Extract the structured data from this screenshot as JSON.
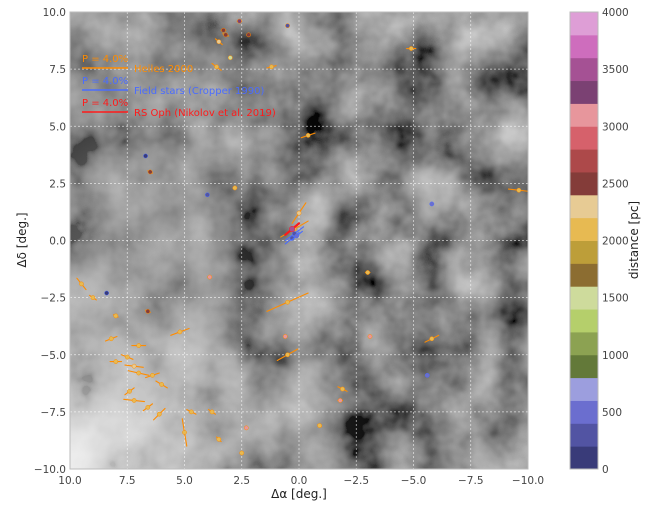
{
  "chart_data": {
    "type": "scatter",
    "xlabel": "Δα [deg.]",
    "ylabel": "Δδ [deg.]",
    "xlim": [
      10.0,
      -10.0
    ],
    "ylim": [
      -10.0,
      10.0
    ],
    "x_ticks": [
      10.0,
      7.5,
      5.0,
      2.5,
      0.0,
      -2.5,
      -5.0,
      -7.5,
      -10.0
    ],
    "x_tick_labels": [
      "10.0",
      "7.5",
      "5.0",
      "2.5",
      "0.0",
      "−2.5",
      "−5.0",
      "−7.5",
      "−10.0"
    ],
    "y_ticks": [
      10.0,
      7.5,
      5.0,
      2.5,
      0.0,
      -2.5,
      -5.0,
      -7.5,
      -10.0
    ],
    "y_tick_labels": [
      "10.0",
      "7.5",
      "5.0",
      "2.5",
      "0.0",
      "−2.5",
      "−5.0",
      "−7.5",
      "−10.0"
    ],
    "grid": true,
    "background": "grayscale dust map",
    "legend": {
      "placement": "top-left",
      "entries": [
        {
          "label": "Heiles 2000",
          "scale_label": "P = 4.0%",
          "color": "#ff8c00"
        },
        {
          "label": "Field stars (Cropper 1990)",
          "scale_label": "P = 4.0%",
          "color": "#4a6cff"
        },
        {
          "label": "RS Oph (Nikolov et al. 2019)",
          "scale_label": "P = 4.0%",
          "color": "#ff1a1a"
        }
      ]
    },
    "colorbar": {
      "label": "distance [pc]",
      "range": [
        0,
        4000
      ],
      "ticks": [
        0,
        500,
        1000,
        1500,
        2000,
        2500,
        3000,
        3500,
        4000
      ],
      "colors": [
        "#393b79",
        "#5254a3",
        "#6b6ecf",
        "#9c9ede",
        "#637939",
        "#8ca252",
        "#b5cf6b",
        "#cedb9c",
        "#8c6d31",
        "#bd9e39",
        "#e7ba52",
        "#e7cb94",
        "#843c39",
        "#ad494a",
        "#d6616b",
        "#e7969c",
        "#7b4173",
        "#a55194",
        "#ce6dbd",
        "#de9ed6"
      ]
    },
    "series": [
      {
        "name": "Heiles 2000",
        "color": "#ff8c00",
        "points": [
          {
            "x": 2.6,
            "y": 9.6,
            "d": 3200,
            "dx": 0.2,
            "dy": 0.0
          },
          {
            "x": 0.5,
            "y": 9.4,
            "d": 200,
            "dx": 0.1,
            "dy": 0.0
          },
          {
            "x": 3.2,
            "y": 9.0,
            "d": 2400,
            "dx": 0.25,
            "dy": 0.1
          },
          {
            "x": 3.3,
            "y": 9.2,
            "d": 2500,
            "dx": 0.2,
            "dy": 0.0
          },
          {
            "x": 2.2,
            "y": 9.0,
            "d": 2500,
            "dx": 0.15,
            "dy": 0.0
          },
          {
            "x": 3.5,
            "y": 8.7,
            "d": 2200,
            "dx": 0.3,
            "dy": 0.25
          },
          {
            "x": 3.0,
            "y": 8.0,
            "d": 1500,
            "dx": 0.05,
            "dy": 0.0
          },
          {
            "x": -4.9,
            "y": 8.4,
            "d": 2100,
            "dx": 0.4,
            "dy": 0.0
          },
          {
            "x": 3.6,
            "y": 7.6,
            "d": 2000,
            "dx": 0.4,
            "dy": 0.3
          },
          {
            "x": 1.2,
            "y": 7.6,
            "d": 2000,
            "dx": 0.4,
            "dy": -0.1
          },
          {
            "x": -0.4,
            "y": 4.6,
            "d": 2000,
            "dx": 0.6,
            "dy": -0.2
          },
          {
            "x": 6.5,
            "y": 3.0,
            "d": 2500,
            "dx": 0.2,
            "dy": 0.1
          },
          {
            "x": 2.8,
            "y": 2.3,
            "d": 2100,
            "dx": 0.15,
            "dy": -0.05
          },
          {
            "x": -9.6,
            "y": 2.2,
            "d": 2100,
            "dx": 0.9,
            "dy": 0.1
          },
          {
            "x": 0.0,
            "y": 1.2,
            "d": 2200,
            "dx": 0.6,
            "dy": -0.9
          },
          {
            "x": 0.2,
            "y": 0.5,
            "d": 2000,
            "dx": 1.2,
            "dy": -0.7
          },
          {
            "x": -3.0,
            "y": -1.4,
            "d": 2000,
            "dx": 0.2,
            "dy": 0.0
          },
          {
            "x": 0.5,
            "y": -2.7,
            "d": 2100,
            "dx": 1.8,
            "dy": -0.8
          },
          {
            "x": 9.5,
            "y": -1.9,
            "d": 2000,
            "dx": 0.4,
            "dy": 0.5
          },
          {
            "x": 9.0,
            "y": -2.5,
            "d": 2000,
            "dx": 0.3,
            "dy": 0.2
          },
          {
            "x": 8.0,
            "y": -3.3,
            "d": 2000,
            "dx": 0.2,
            "dy": 0.1
          },
          {
            "x": 6.6,
            "y": -3.1,
            "d": 2500,
            "dx": 0.2,
            "dy": 0.1
          },
          {
            "x": 5.2,
            "y": -4.0,
            "d": 2000,
            "dx": 0.8,
            "dy": -0.3
          },
          {
            "x": 8.2,
            "y": -4.3,
            "d": 2000,
            "dx": 0.5,
            "dy": -0.2
          },
          {
            "x": -5.8,
            "y": -4.3,
            "d": 2100,
            "dx": 0.6,
            "dy": -0.3
          },
          {
            "x": 0.5,
            "y": -5.0,
            "d": 2000,
            "dx": 0.9,
            "dy": -0.5
          },
          {
            "x": 7.0,
            "y": -4.6,
            "d": 2000,
            "dx": 0.6,
            "dy": 0.0
          },
          {
            "x": 7.5,
            "y": -5.1,
            "d": 2000,
            "dx": 0.5,
            "dy": 0.2
          },
          {
            "x": 8.0,
            "y": -5.3,
            "d": 2100,
            "dx": 0.5,
            "dy": 0.0
          },
          {
            "x": 7.2,
            "y": -5.5,
            "d": 2200,
            "dx": 0.8,
            "dy": 0.1
          },
          {
            "x": 7.0,
            "y": -5.8,
            "d": 2000,
            "dx": 0.9,
            "dy": 0.2
          },
          {
            "x": 6.4,
            "y": -5.9,
            "d": 2000,
            "dx": 0.6,
            "dy": -0.2
          },
          {
            "x": 6.0,
            "y": -6.3,
            "d": 2000,
            "dx": 0.5,
            "dy": 0.3
          },
          {
            "x": 7.4,
            "y": -6.6,
            "d": 2000,
            "dx": 0.4,
            "dy": -0.3
          },
          {
            "x": 7.2,
            "y": -7.0,
            "d": 2100,
            "dx": 0.9,
            "dy": 0.1
          },
          {
            "x": 6.6,
            "y": -7.3,
            "d": 2000,
            "dx": 0.4,
            "dy": -0.3
          },
          {
            "x": 6.1,
            "y": -7.6,
            "d": 2000,
            "dx": 0.5,
            "dy": -0.5
          },
          {
            "x": 4.7,
            "y": -7.5,
            "d": 2000,
            "dx": 0.4,
            "dy": 0.2
          },
          {
            "x": 5.0,
            "y": -8.4,
            "d": 2000,
            "dx": 0.2,
            "dy": 1.2
          },
          {
            "x": 3.8,
            "y": -7.5,
            "d": 2100,
            "dx": 0.3,
            "dy": 0.2
          },
          {
            "x": 3.5,
            "y": -8.7,
            "d": 2000,
            "dx": 0.2,
            "dy": 0.2
          },
          {
            "x": 2.5,
            "y": -9.3,
            "d": 2000,
            "dx": 0.05,
            "dy": 0.0
          },
          {
            "x": 2.3,
            "y": -8.2,
            "d": 3000,
            "dx": 0.1,
            "dy": 0.1
          },
          {
            "x": -1.8,
            "y": -7.0,
            "d": 3000,
            "dx": 0.2,
            "dy": 0.0
          },
          {
            "x": -1.9,
            "y": -6.5,
            "d": 2000,
            "dx": 0.4,
            "dy": 0.2
          },
          {
            "x": -0.9,
            "y": -8.1,
            "d": 2000,
            "dx": 0.15,
            "dy": 0.1
          },
          {
            "x": 3.9,
            "y": -1.6,
            "d": 3000,
            "dx": 0.15,
            "dy": 0.0
          },
          {
            "x": -3.1,
            "y": -4.2,
            "d": 3000,
            "dx": 0.05,
            "dy": 0.0
          },
          {
            "x": 0.6,
            "y": -4.2,
            "d": 3000,
            "dx": 0.05,
            "dy": 0.0
          }
        ]
      },
      {
        "name": "Field stars (Cropper 1990)",
        "color": "#4a6cff",
        "points": [
          {
            "x": 0.2,
            "y": 0.3,
            "d": 300,
            "dx": 0.8,
            "dy": -0.6
          },
          {
            "x": 0.3,
            "y": 0.1,
            "d": 300,
            "dx": 0.6,
            "dy": -0.5
          },
          {
            "x": 0.1,
            "y": 0.2,
            "d": 400,
            "dx": 0.5,
            "dy": -0.4
          },
          {
            "x": 4.0,
            "y": 2.0,
            "d": 200,
            "dx": 0.05,
            "dy": 0.0
          },
          {
            "x": 6.7,
            "y": 3.7,
            "d": 150,
            "dx": 0.05,
            "dy": 0.0
          },
          {
            "x": 8.4,
            "y": -2.3,
            "d": 150,
            "dx": 0.05,
            "dy": 0.0
          },
          {
            "x": -5.8,
            "y": 1.6,
            "d": 500,
            "dx": 0.05,
            "dy": 0.0
          },
          {
            "x": -5.6,
            "y": -5.9,
            "d": 500,
            "dx": 0.05,
            "dy": 0.0
          }
        ]
      },
      {
        "name": "RS Oph (Nikolov et al. 2019)",
        "color": "#ff1a1a",
        "points": [
          {
            "x": 0.3,
            "y": 0.5,
            "d": 3500,
            "dx": 0.6,
            "dy": -0.5
          }
        ]
      }
    ]
  }
}
